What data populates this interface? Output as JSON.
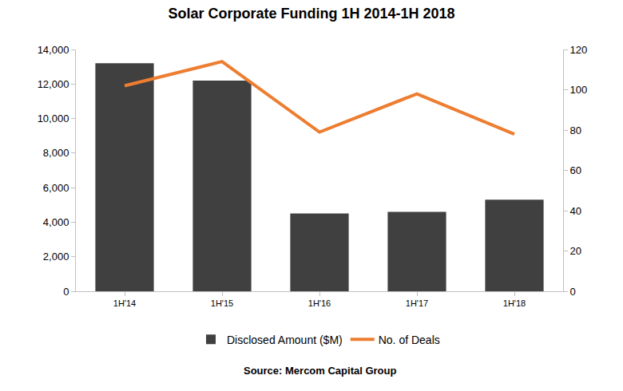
{
  "chart_data": {
    "type": "bar",
    "title": "Solar Corporate Funding 1H 2014-1H 2018",
    "annotations": [
      "Source: Mercom Capital Group"
    ],
    "categories": [
      "1H'14",
      "1H'15",
      "1H'16",
      "1H'17",
      "1H'18"
    ],
    "series": [
      {
        "name": "Disclosed Amount ($M)",
        "type": "bar",
        "color": "#404040",
        "values": [
          13200,
          12200,
          4500,
          4600,
          5300
        ]
      },
      {
        "name": "No. of Deals",
        "type": "line",
        "color": "#ed7d31",
        "axis": "y2",
        "values": [
          102,
          114,
          79,
          98,
          78
        ]
      }
    ],
    "ylim": [
      0,
      14000
    ],
    "yticks": [
      0,
      {
        "value": 2000,
        "label": "2,000"
      },
      {
        "value": 4000,
        "label": "4,000"
      },
      {
        "value": 6000,
        "label": "6,000"
      },
      {
        "value": 8000,
        "label": "8,000"
      },
      {
        "value": 10000,
        "label": "10,000"
      },
      {
        "value": 12000,
        "label": "12,000"
      },
      {
        "value": 14000,
        "label": "14,000"
      }
    ],
    "y2lim": [
      0,
      120
    ],
    "y2ticks": [
      0,
      20,
      40,
      60,
      80,
      100,
      120
    ],
    "grid": false,
    "legend": "bottom"
  }
}
